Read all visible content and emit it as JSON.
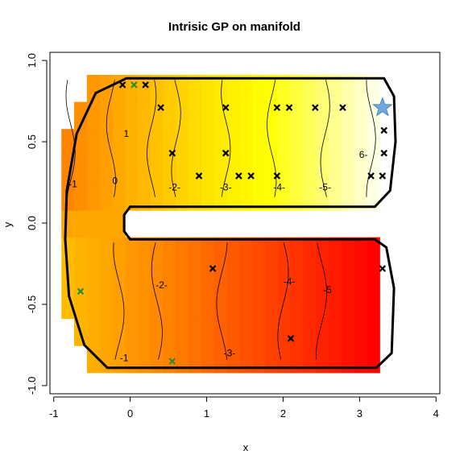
{
  "chart_data": {
    "type": "heatmap",
    "title": "Intrisic GP on manifold",
    "xlabel": "x",
    "ylabel": "y",
    "xlim": [
      -1.05,
      4.05
    ],
    "ylim": [
      -1.05,
      1.05
    ],
    "xticks": [
      "-1",
      "0",
      "1",
      "2",
      "3",
      "4"
    ],
    "yticks": [
      "-1.0",
      "-0.5",
      "0.0",
      "0.5",
      "1.0"
    ],
    "grid": false,
    "color_scale": {
      "low": "#ff0000",
      "mid": "#ff8c00",
      "high_mid": "#ffff00",
      "high": "#ffffff"
    },
    "contour_levels": [
      "-1",
      "0",
      "1",
      "2",
      "3",
      "4",
      "5",
      "6",
      "-1",
      "-2",
      "-3",
      "-4",
      "-5"
    ],
    "contour_color": "#000000",
    "boundary_color": "#000000",
    "observations_black": [
      {
        "x": -0.1,
        "y": 0.85
      },
      {
        "x": 0.2,
        "y": 0.85
      },
      {
        "x": 0.4,
        "y": 0.71
      },
      {
        "x": 0.55,
        "y": 0.43
      },
      {
        "x": 0.9,
        "y": 0.29
      },
      {
        "x": 1.25,
        "y": 0.71
      },
      {
        "x": 1.25,
        "y": 0.43
      },
      {
        "x": 1.42,
        "y": 0.29
      },
      {
        "x": 1.58,
        "y": 0.29
      },
      {
        "x": 1.92,
        "y": 0.71
      },
      {
        "x": 2.08,
        "y": 0.71
      },
      {
        "x": 2.42,
        "y": 0.71
      },
      {
        "x": 2.78,
        "y": 0.71
      },
      {
        "x": 1.92,
        "y": 0.29
      },
      {
        "x": 3.15,
        "y": 0.29
      },
      {
        "x": 3.3,
        "y": 0.29
      },
      {
        "x": 3.32,
        "y": 0.43
      },
      {
        "x": 3.32,
        "y": 0.57
      },
      {
        "x": 1.08,
        "y": -0.28
      },
      {
        "x": 2.1,
        "y": -0.71
      },
      {
        "x": 3.3,
        "y": -0.28
      }
    ],
    "observations_green": [
      {
        "x": 0.05,
        "y": 0.85
      },
      {
        "x": -0.65,
        "y": -0.42
      },
      {
        "x": 0.55,
        "y": -0.85
      }
    ],
    "star": {
      "x": 3.3,
      "y": 0.71,
      "color": "#6fa8dc"
    }
  }
}
